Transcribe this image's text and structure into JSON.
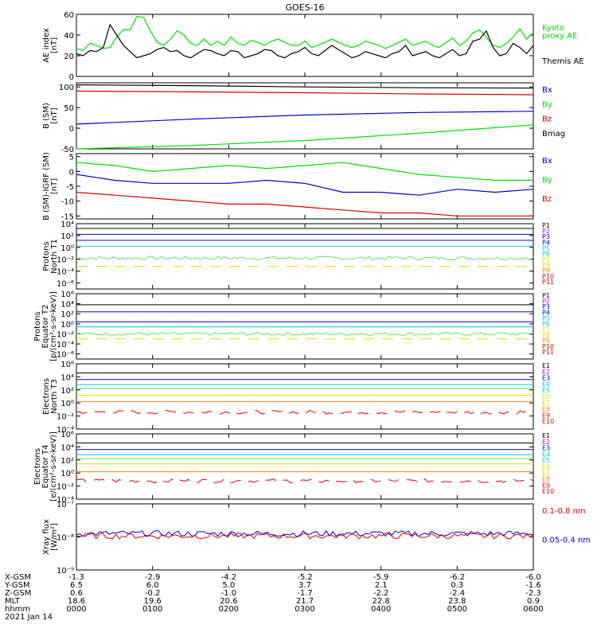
{
  "title": "GOES-16",
  "colors": {
    "black": "#000000",
    "green": "#00dd00",
    "blue": "#0000cc",
    "red": "#dd0000",
    "cyan": "#00cccc",
    "lightgreen": "#66dd66",
    "yellow": "#dddd00",
    "orange": "#ee8800",
    "magenta": "#cc00cc"
  },
  "chart_data": [
    {
      "id": "ae",
      "type": "line",
      "ylabel": [
        "AE index",
        "[nT]"
      ],
      "ylim": [
        0,
        60
      ],
      "yticks": [
        "0",
        "20",
        "40",
        "60"
      ],
      "legend": [
        {
          "text": "Kyoto",
          "color": "green"
        },
        {
          "text": "proxy AE",
          "color": "green"
        },
        {
          "text": "Themis AE",
          "color": "black"
        }
      ],
      "series": [
        {
          "name": "Kyoto proxy AE",
          "color": "green",
          "values": [
            27,
            25,
            32,
            30,
            27,
            28,
            38,
            45,
            45,
            58,
            57,
            44,
            33,
            30,
            36,
            44,
            40,
            32,
            30,
            36,
            30,
            34,
            30,
            38,
            32,
            30,
            35,
            33,
            30,
            34,
            36,
            33,
            30,
            30,
            34,
            28,
            30,
            33,
            36,
            33,
            30,
            28,
            30,
            34,
            32,
            30,
            27,
            30,
            33,
            36,
            30,
            32,
            34,
            30,
            28,
            33,
            37,
            30,
            34,
            42,
            45,
            38,
            30,
            28,
            32,
            38,
            46,
            36,
            42
          ]
        },
        {
          "name": "Themis AE",
          "color": "black",
          "values": [
            22,
            20,
            25,
            24,
            28,
            50,
            40,
            30,
            24,
            18,
            20,
            22,
            26,
            28,
            24,
            25,
            20,
            18,
            22,
            26,
            25,
            22,
            20,
            25,
            24,
            18,
            20,
            22,
            26,
            25,
            20,
            18,
            22,
            24,
            28,
            22,
            20,
            25,
            30,
            26,
            22,
            18,
            20,
            24,
            22,
            20,
            18,
            22,
            24,
            30,
            20,
            22,
            24,
            20,
            18,
            22,
            26,
            20,
            22,
            34,
            36,
            44,
            28,
            20,
            22,
            32,
            28,
            22,
            30
          ]
        }
      ]
    },
    {
      "id": "bsm",
      "type": "line",
      "ylabel": [
        "B (SM)",
        "[nT]"
      ],
      "ylim": [
        -50,
        110
      ],
      "yticks": [
        "-50",
        "0",
        "50",
        "100"
      ],
      "legend": [
        {
          "text": "Bx",
          "color": "blue"
        },
        {
          "text": "By",
          "color": "green"
        },
        {
          "text": "Bz",
          "color": "red"
        },
        {
          "text": "Bmag",
          "color": "black"
        }
      ],
      "series": [
        {
          "name": "Bmag",
          "color": "black",
          "values": [
            105,
            103,
            100,
            98,
            97
          ]
        },
        {
          "name": "Bz",
          "color": "red",
          "values": [
            90,
            88,
            86,
            83,
            81
          ]
        },
        {
          "name": "Bx",
          "color": "blue",
          "values": [
            10,
            22,
            32,
            38,
            41
          ]
        },
        {
          "name": "By",
          "color": "green",
          "values": [
            -50,
            -42,
            -30,
            -12,
            8
          ]
        }
      ]
    },
    {
      "id": "bigrf",
      "type": "line",
      "ylabel": [
        "B (SM)-IGRF (SM)",
        "[nT]"
      ],
      "ylim": [
        -16,
        6
      ],
      "yticks": [
        "-15",
        "-10",
        "-5",
        "0",
        "5"
      ],
      "legend": [
        {
          "text": "Bx",
          "color": "blue"
        },
        {
          "text": "By",
          "color": "green"
        },
        {
          "text": "Bz",
          "color": "red"
        }
      ],
      "series": [
        {
          "name": "By",
          "color": "green",
          "values": [
            3,
            2,
            0,
            1,
            2,
            1,
            2,
            3,
            1,
            -1,
            -2,
            -3,
            -3
          ]
        },
        {
          "name": "Bx",
          "color": "blue",
          "values": [
            -1,
            -3,
            -4,
            -4,
            -4,
            -3,
            -4,
            -7,
            -7,
            -8,
            -6,
            -7,
            -6
          ]
        },
        {
          "name": "Bz",
          "color": "red",
          "values": [
            -7,
            -8,
            -9,
            -10,
            -11,
            -11,
            -12,
            -13,
            -14,
            -14,
            -15,
            -15,
            -15
          ]
        }
      ]
    },
    {
      "id": "pnt1",
      "type": "line",
      "log": true,
      "ylabel": [
        "Protons",
        "North T1"
      ],
      "ylim": [
        -7,
        4
      ],
      "yticks": [
        "10⁴",
        "10²",
        "10⁰",
        "10⁻²",
        "10⁻⁴",
        "10⁻⁶"
      ],
      "legend": [
        {
          "text": "P1",
          "color": "black"
        },
        {
          "text": "P2",
          "color": "magenta"
        },
        {
          "text": "P3",
          "color": "blue"
        },
        {
          "text": "P4",
          "color": "blue"
        },
        {
          "text": "P5",
          "color": "cyan"
        },
        {
          "text": "P6",
          "color": "cyan"
        },
        {
          "text": "P7",
          "color": "yellow"
        },
        {
          "text": "P8",
          "color": "yellow"
        },
        {
          "text": "P9",
          "color": "orange"
        },
        {
          "text": "P10",
          "color": "red"
        },
        {
          "text": "P11",
          "color": "red"
        }
      ],
      "levels": [
        {
          "c": "black",
          "v": 3.2
        },
        {
          "c": "blue",
          "v": 2.2
        },
        {
          "c": "blue",
          "v": 1.2
        },
        {
          "c": "cyan",
          "v": 0.2
        },
        {
          "c": "lightgreen",
          "v": -1.8,
          "noisy": true
        },
        {
          "c": "yellow",
          "v": -3.2,
          "dashed": true
        }
      ]
    },
    {
      "id": "pet2",
      "type": "line",
      "log": true,
      "ylabel": [
        "Protons",
        "Equator T2",
        "[p/(cm²-s-sr-keV)]"
      ],
      "ylim": [
        -7,
        6
      ],
      "yticks": [
        "10⁶",
        "10⁴",
        "10²",
        "10⁰",
        "10⁻²",
        "10⁻⁴",
        "10⁻⁶"
      ],
      "legend": [
        {
          "text": "P1",
          "color": "black"
        },
        {
          "text": "P2",
          "color": "magenta"
        },
        {
          "text": "P3",
          "color": "blue"
        },
        {
          "text": "P4",
          "color": "blue"
        },
        {
          "text": "P5",
          "color": "cyan"
        },
        {
          "text": "P6",
          "color": "cyan"
        },
        {
          "text": "P7",
          "color": "yellow"
        },
        {
          "text": "P8",
          "color": "yellow"
        },
        {
          "text": "P9",
          "color": "orange"
        },
        {
          "text": "P10",
          "color": "red"
        },
        {
          "text": "P11",
          "color": "red"
        }
      ],
      "levels": [
        {
          "c": "black",
          "v": 3.8
        },
        {
          "c": "blue",
          "v": 2.4
        },
        {
          "c": "blue",
          "v": 0.4
        },
        {
          "c": "cyan",
          "v": -0.6
        },
        {
          "c": "lightgreen",
          "v": -2,
          "noisy": true
        },
        {
          "c": "yellow",
          "v": -3,
          "dashed": true
        }
      ]
    },
    {
      "id": "ent3",
      "type": "line",
      "log": true,
      "ylabel": [
        "Electrons",
        "North T3"
      ],
      "ylim": [
        -4,
        6
      ],
      "yticks": [
        "10⁶",
        "10⁴",
        "10²",
        "10⁰",
        "10⁻²",
        "10⁻⁴"
      ],
      "legend": [
        {
          "text": "E1",
          "color": "black"
        },
        {
          "text": "E2",
          "color": "magenta"
        },
        {
          "text": "E3",
          "color": "blue"
        },
        {
          "text": "E4",
          "color": "cyan"
        },
        {
          "text": "E5",
          "color": "cyan"
        },
        {
          "text": "E6",
          "color": "yellow"
        },
        {
          "text": "E7",
          "color": "yellow"
        },
        {
          "text": "E8",
          "color": "orange"
        },
        {
          "text": "E9",
          "color": "red"
        },
        {
          "text": "E10",
          "color": "red"
        }
      ],
      "levels": [
        {
          "c": "black",
          "v": 4.6
        },
        {
          "c": "blue",
          "v": 3.6
        },
        {
          "c": "cyan",
          "v": 2.8
        },
        {
          "c": "lightgreen",
          "v": 2.2
        },
        {
          "c": "yellow",
          "v": 1.2
        },
        {
          "c": "orange",
          "v": 0.2
        },
        {
          "c": "red",
          "v": -1.4,
          "noisy": true,
          "dashed": true
        }
      ]
    },
    {
      "id": "eet4",
      "type": "line",
      "log": true,
      "ylabel": [
        "Electrons",
        "Equator T4",
        "[e/(cm²-s-sr-keV)]"
      ],
      "ylim": [
        -4,
        6
      ],
      "yticks": [
        "10⁶",
        "10⁴",
        "10²",
        "10⁰",
        "10⁻²",
        "10⁻⁴"
      ],
      "legend": [
        {
          "text": "E1",
          "color": "black"
        },
        {
          "text": "E2",
          "color": "magenta"
        },
        {
          "text": "E3",
          "color": "blue"
        },
        {
          "text": "E4",
          "color": "cyan"
        },
        {
          "text": "E5",
          "color": "cyan"
        },
        {
          "text": "E6",
          "color": "yellow"
        },
        {
          "text": "E7",
          "color": "yellow"
        },
        {
          "text": "E8",
          "color": "orange"
        },
        {
          "text": "E9",
          "color": "red"
        },
        {
          "text": "E10",
          "color": "red"
        }
      ],
      "levels": [
        {
          "c": "black",
          "v": 4.6
        },
        {
          "c": "blue",
          "v": 3.6
        },
        {
          "c": "cyan",
          "v": 2.8
        },
        {
          "c": "lightgreen",
          "v": 2.2
        },
        {
          "c": "yellow",
          "v": 1.4
        },
        {
          "c": "orange",
          "v": 0.2
        },
        {
          "c": "red",
          "v": -1.2,
          "noisy": true,
          "dashed": true
        }
      ]
    },
    {
      "id": "xray",
      "type": "line",
      "log": true,
      "ylabel": [
        "Xray flux",
        "[W/m²]"
      ],
      "ylim": [
        -9,
        -7
      ],
      "yticks": [
        "10⁻⁷",
        "10⁻⁸",
        "10⁻⁹"
      ],
      "legend": [
        {
          "text": "0.1-0.8 nm",
          "color": "red"
        },
        {
          "text": "0.05-0.4 nm",
          "color": "blue"
        }
      ],
      "levels": [
        {
          "c": "blue",
          "v": -7.9,
          "noisy": true
        },
        {
          "c": "red",
          "v": -7.97,
          "noisy": true
        }
      ]
    }
  ],
  "x_axis": {
    "rows": [
      {
        "label": "X-GSM",
        "values": [
          "-1.3",
          "-2.9",
          "-4.2",
          "-5.2",
          "-5.9",
          "-6.2",
          "-6.0"
        ]
      },
      {
        "label": "Y-GSM",
        "values": [
          "6.5",
          "6.0",
          "5.0",
          "3.7",
          "2.1",
          "0.3",
          "-1.6"
        ]
      },
      {
        "label": "Z-GSM",
        "values": [
          "0.6",
          "-0.2",
          "-1.0",
          "-1.7",
          "-2.2",
          "-2.4",
          "-2.3"
        ]
      },
      {
        "label": "MLT",
        "values": [
          "18.6",
          "19.6",
          "20.6",
          "21.7",
          "22.8",
          "23.8",
          "0.9"
        ]
      },
      {
        "label": "hhmm",
        "values": [
          "0000",
          "0100",
          "0200",
          "0300",
          "0400",
          "0500",
          "0600"
        ]
      }
    ],
    "date": "2021 Jan 14"
  }
}
